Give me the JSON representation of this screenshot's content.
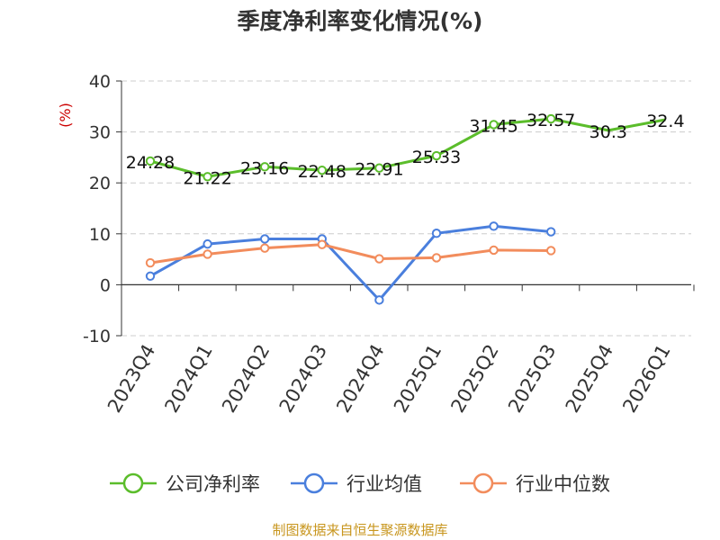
{
  "title": "季度净利率变化情况(%)",
  "source": "制图数据来自恒生聚源数据库",
  "source_color": "#c8961e",
  "chart_data": {
    "type": "line",
    "title": "季度净利率变化情况(%)",
    "ylabel": "(%)",
    "ylabel_color": "#cc0000",
    "ylim": [
      -10,
      40
    ],
    "yticks": [
      -10,
      0,
      10,
      20,
      30,
      40
    ],
    "ytick_labels": [
      "-10",
      "0",
      "10",
      "20",
      "30",
      "40"
    ],
    "grid": true,
    "legend_position": "bottom",
    "categories": [
      "2023Q4",
      "2024Q1",
      "2024Q2",
      "2024Q3",
      "2024Q4",
      "2025Q1",
      "2025Q2",
      "2025Q3",
      "2025Q4",
      "2026Q1"
    ],
    "series": [
      {
        "name": "公司净利率",
        "color": "#5bbd2b",
        "values": [
          24.28,
          21.22,
          23.16,
          22.48,
          22.91,
          25.33,
          31.45,
          32.57,
          30.3,
          32.4
        ],
        "labels": [
          "24.28",
          "21.22",
          "23.16",
          "22.48",
          "22.91",
          "25.33",
          "31.45",
          "32.57",
          "30.3",
          "32.4"
        ],
        "markers": [
          true,
          true,
          true,
          true,
          true,
          true,
          true,
          true,
          false,
          false
        ]
      },
      {
        "name": "行业均值",
        "color": "#4a7fdd",
        "values": [
          1.7,
          8.0,
          9.0,
          9.0,
          -3.0,
          10.1,
          11.5,
          10.4,
          null,
          null
        ],
        "markers": [
          true,
          true,
          true,
          true,
          true,
          true,
          true,
          true,
          false,
          false
        ]
      },
      {
        "name": "行业中位数",
        "color": "#f28c5c",
        "values": [
          4.3,
          6.0,
          7.2,
          7.9,
          5.1,
          5.3,
          6.8,
          6.7,
          null,
          null
        ],
        "markers": [
          true,
          true,
          true,
          true,
          true,
          true,
          true,
          true,
          false,
          false
        ]
      }
    ]
  }
}
